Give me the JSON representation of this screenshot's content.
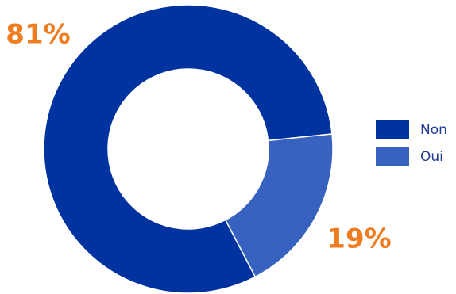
{
  "chart_data": {
    "type": "donut",
    "categories": [
      "Non",
      "Oui"
    ],
    "values": [
      81,
      19
    ],
    "value_labels": [
      "81%",
      "19%"
    ],
    "colors": [
      "#0033a0",
      "#3862bf"
    ],
    "legend": "right"
  }
}
